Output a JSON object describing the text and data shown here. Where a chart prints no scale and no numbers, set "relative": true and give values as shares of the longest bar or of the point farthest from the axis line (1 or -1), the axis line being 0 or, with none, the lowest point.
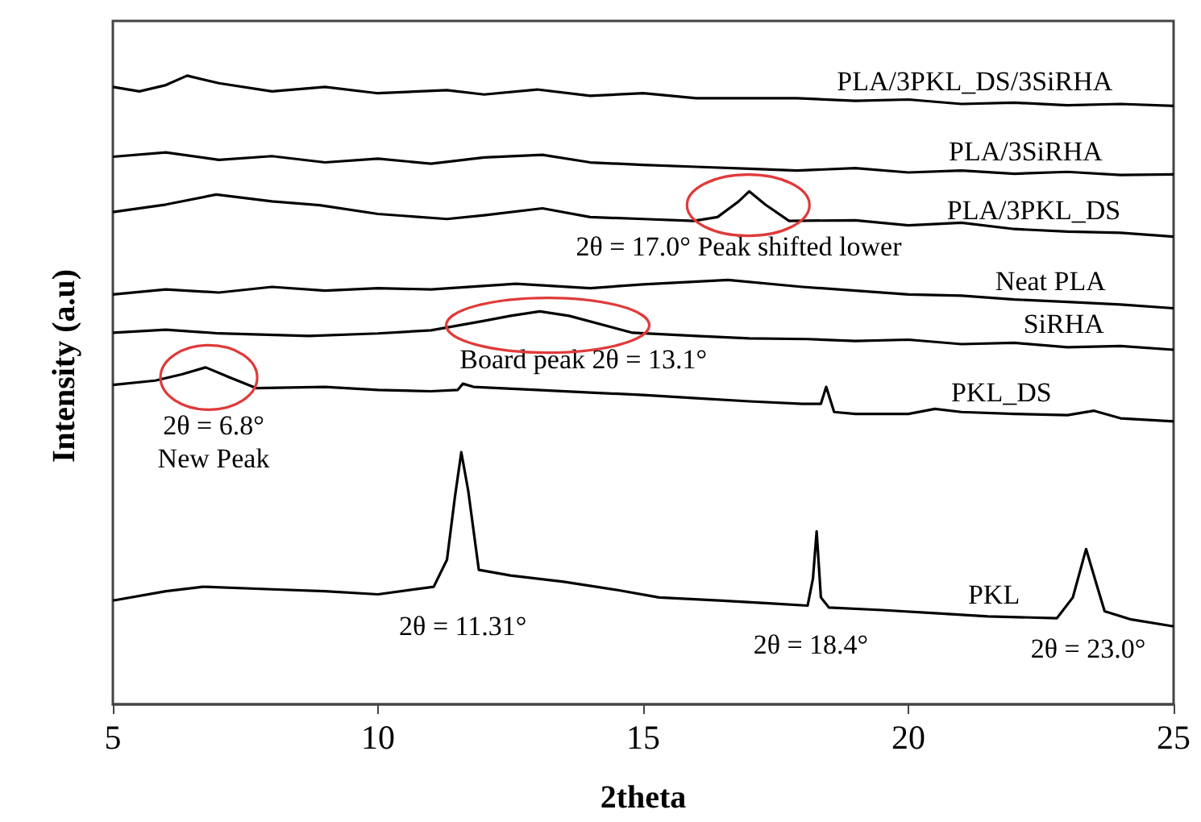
{
  "chart_data": {
    "type": "line",
    "relative": true,
    "xlabel": "2theta",
    "ylabel": "Intensity (a.u)",
    "xlim": [
      5,
      25
    ],
    "xticks": [
      5,
      10,
      15,
      20,
      25
    ],
    "grid": false,
    "legend": false,
    "marker": "none",
    "line_style": "solid",
    "tick_labels": "x",
    "series": [
      {
        "name": "PLA/3PKL_DS/3SiRHA",
        "color": "#000000",
        "x": [
          5,
          5.5,
          6,
          6.4,
          7,
          8,
          9,
          10,
          11.3,
          12,
          13,
          14,
          15,
          16,
          17.9,
          19,
          20,
          21,
          22,
          23,
          24,
          25
        ],
        "values": [
          0.982,
          0.975,
          0.985,
          1,
          0.988,
          0.975,
          0.982,
          0.972,
          0.977,
          0.97,
          0.978,
          0.968,
          0.972,
          0.964,
          0.964,
          0.96,
          0.962,
          0.955,
          0.957,
          0.953,
          0.955,
          0.952
        ]
      },
      {
        "name": "PLA/3SiRHA",
        "color": "#000000",
        "x": [
          5,
          6,
          7,
          8,
          9,
          10,
          11,
          12,
          13.1,
          14,
          15,
          16,
          17,
          17.9,
          19,
          20,
          21,
          22,
          23,
          24,
          25
        ],
        "values": [
          0.871,
          0.878,
          0.866,
          0.872,
          0.862,
          0.868,
          0.86,
          0.87,
          0.874,
          0.862,
          0.858,
          0.855,
          0.852,
          0.849,
          0.853,
          0.846,
          0.849,
          0.844,
          0.847,
          0.842,
          0.843
        ]
      },
      {
        "name": "PLA/3PKL_DS",
        "color": "#000000",
        "x": [
          5,
          6,
          6.95,
          8,
          8.9,
          10,
          11.3,
          12,
          13.1,
          14,
          15,
          15.95,
          16.4,
          16.8,
          17.0,
          17.3,
          17.75,
          19,
          20,
          21,
          22,
          23,
          24,
          25
        ],
        "values": [
          0.783,
          0.795,
          0.811,
          0.8,
          0.794,
          0.78,
          0.772,
          0.778,
          0.789,
          0.775,
          0.772,
          0.769,
          0.775,
          0.8,
          0.816,
          0.795,
          0.769,
          0.77,
          0.762,
          0.766,
          0.756,
          0.752,
          0.75,
          0.744
        ]
      },
      {
        "name": "Neat PLA",
        "color": "#000000",
        "x": [
          5,
          6,
          7,
          8,
          9,
          10,
          11,
          12.6,
          14,
          15,
          16.6,
          18,
          19,
          20,
          21,
          22,
          23,
          24,
          25
        ],
        "values": [
          0.652,
          0.66,
          0.655,
          0.664,
          0.658,
          0.662,
          0.66,
          0.669,
          0.662,
          0.668,
          0.675,
          0.664,
          0.658,
          0.652,
          0.65,
          0.644,
          0.64,
          0.636,
          0.63
        ]
      },
      {
        "name": "SiRHA",
        "color": "#000000",
        "x": [
          5,
          6,
          7,
          8.7,
          10,
          11,
          12,
          12.5,
          13.05,
          13.6,
          14.8,
          16,
          17,
          18.1,
          19,
          20,
          21,
          22,
          23,
          24,
          25
        ],
        "values": [
          0.591,
          0.596,
          0.59,
          0.586,
          0.59,
          0.595,
          0.61,
          0.618,
          0.625,
          0.618,
          0.591,
          0.586,
          0.582,
          0.581,
          0.578,
          0.58,
          0.573,
          0.575,
          0.568,
          0.57,
          0.564
        ]
      },
      {
        "name": "PKL_DS",
        "color": "#000000",
        "x": [
          5,
          5.8,
          6.3,
          6.75,
          7.2,
          7.7,
          9,
          10,
          11,
          11.5,
          11.6,
          11.8,
          13,
          14,
          15,
          16,
          17,
          18.0,
          18.35,
          18.45,
          18.6,
          19,
          20,
          20.5,
          21,
          22,
          23,
          23.5,
          24,
          25
        ],
        "values": [
          0.508,
          0.515,
          0.525,
          0.536,
          0.52,
          0.503,
          0.505,
          0.5,
          0.498,
          0.5,
          0.51,
          0.505,
          0.5,
          0.496,
          0.492,
          0.487,
          0.482,
          0.478,
          0.478,
          0.505,
          0.465,
          0.462,
          0.462,
          0.47,
          0.465,
          0.462,
          0.46,
          0.467,
          0.455,
          0.45
        ]
      },
      {
        "name": "PKL",
        "color": "#000000",
        "x": [
          5,
          6,
          6.7,
          8,
          9,
          10,
          11.05,
          11.3,
          11.45,
          11.57,
          11.7,
          11.9,
          12.5,
          13.5,
          14.5,
          15.3,
          16.5,
          17.5,
          18.1,
          18.2,
          18.27,
          18.35,
          18.5,
          19.5,
          20.5,
          21.5,
          22.8,
          23.1,
          23.35,
          23.55,
          23.7,
          24.2,
          25
        ],
        "values": [
          0.165,
          0.18,
          0.187,
          0.183,
          0.18,
          0.175,
          0.187,
          0.23,
          0.33,
          0.401,
          0.34,
          0.214,
          0.205,
          0.195,
          0.182,
          0.17,
          0.165,
          0.16,
          0.157,
          0.2,
          0.275,
          0.17,
          0.154,
          0.15,
          0.145,
          0.14,
          0.137,
          0.17,
          0.247,
          0.19,
          0.148,
          0.135,
          0.124
        ]
      }
    ],
    "annotations": [
      "2θ = 17.0° Peak shifted lower",
      "Board peak 2θ = 13.1°",
      "2θ = 6.8°",
      "New Peak",
      "2θ = 11.31°",
      "2θ = 18.4°",
      "2θ = 23.0°"
    ]
  }
}
